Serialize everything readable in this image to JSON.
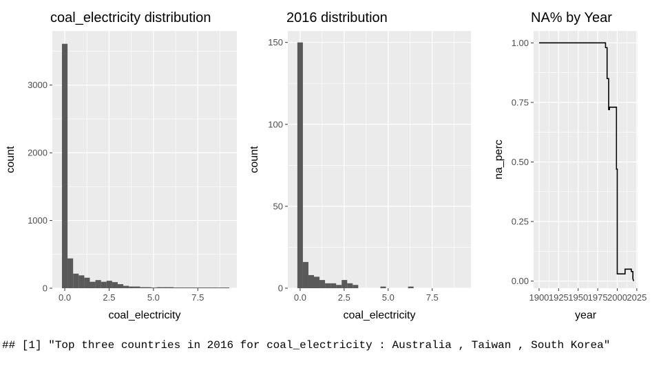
{
  "chart_data": [
    {
      "type": "bar",
      "subtype": "histogram",
      "title": "coal_electricity  distribution",
      "xlabel": "coal_electricity",
      "ylabel": "count",
      "xlim": [
        -0.7,
        9.7
      ],
      "ylim": [
        0,
        3800
      ],
      "x_ticks": [
        0,
        2.5,
        5,
        7.5
      ],
      "x_tick_labels": [
        "0.0",
        "2.5",
        "5.0",
        "7.5"
      ],
      "y_ticks": [
        0,
        1000,
        2000,
        3000
      ],
      "y_tick_labels": [
        "0",
        "1000",
        "2000",
        "3000"
      ],
      "bin_width": 0.3143,
      "bin_start": -0.1571,
      "counts": [
        3610,
        440,
        215,
        190,
        155,
        95,
        120,
        95,
        110,
        90,
        60,
        35,
        25,
        25,
        15,
        15,
        10,
        15,
        15,
        15,
        10,
        10,
        10,
        10,
        10,
        10,
        10,
        10,
        10,
        10
      ],
      "bar_color": "#595959",
      "grid": true,
      "background": "#ebebeb"
    },
    {
      "type": "bar",
      "subtype": "histogram",
      "title": "2016 distribution",
      "xlabel": "coal_electricity",
      "ylabel": "count",
      "xlim": [
        -0.7,
        9.7
      ],
      "ylim": [
        0,
        157
      ],
      "x_ticks": [
        0,
        2.5,
        5,
        7.5
      ],
      "x_tick_labels": [
        "0.0",
        "2.5",
        "5.0",
        "7.5"
      ],
      "y_ticks": [
        0,
        50,
        100,
        150
      ],
      "y_tick_labels": [
        "0",
        "50",
        "100",
        "150"
      ],
      "bin_width": 0.3143,
      "bin_start": -0.1571,
      "counts": [
        150,
        16,
        8,
        7,
        5,
        3,
        3,
        2,
        5,
        3,
        2,
        0,
        0,
        0,
        0,
        1,
        0,
        0,
        0,
        0,
        1,
        0,
        0,
        0,
        0,
        0,
        0,
        0,
        0,
        0
      ],
      "bar_color": "#595959",
      "grid": true,
      "background": "#ebebeb"
    },
    {
      "type": "line",
      "subtype": "step",
      "title": "NA% by Year",
      "xlabel": "year",
      "ylabel": "na_perc",
      "xlim": [
        1893,
        2026
      ],
      "ylim": [
        -0.03,
        1.05
      ],
      "x_ticks": [
        1900,
        1925,
        1950,
        1975,
        2000,
        2025
      ],
      "x_tick_labels": [
        "1900",
        "1925",
        "1950",
        "1975",
        "2000",
        "2025"
      ],
      "y_ticks": [
        0,
        0.25,
        0.5,
        0.75,
        1
      ],
      "y_tick_labels": [
        "0.00",
        "0.25",
        "0.50",
        "0.75",
        "1.00"
      ],
      "x": [
        1900,
        1985,
        1985,
        1987,
        1987,
        1989,
        1989,
        1990,
        1990,
        1995,
        1995,
        1999,
        1999,
        2000,
        2000,
        2005,
        2005,
        2010,
        2010,
        2015,
        2015,
        2018,
        2018,
        2020,
        2020,
        2021
      ],
      "y": [
        1.0,
        1.0,
        0.98,
        0.98,
        0.85,
        0.85,
        0.72,
        0.72,
        0.73,
        0.73,
        0.73,
        0.73,
        0.47,
        0.47,
        0.03,
        0.03,
        0.03,
        0.03,
        0.05,
        0.05,
        0.05,
        0.05,
        0.04,
        0.04,
        0.01,
        0.0
      ],
      "line_color": "#000000",
      "grid": true,
      "background": "#ebebeb"
    }
  ],
  "console_output": "## [1] \"Top three countries in 2016 for coal_electricity : Australia , Taiwan , South Korea\""
}
